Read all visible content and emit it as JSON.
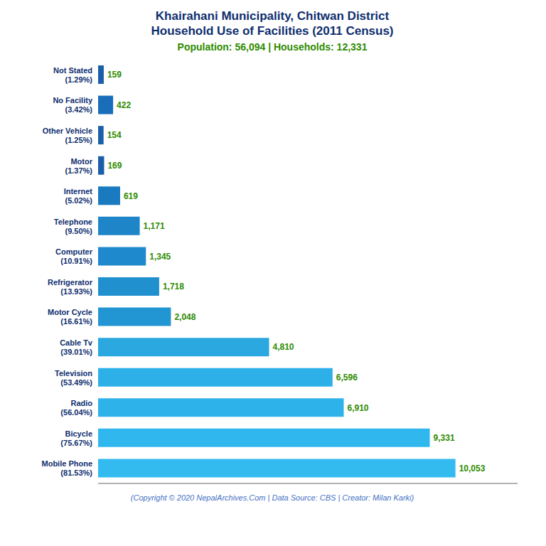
{
  "chart_data": {
    "type": "bar",
    "orientation": "horizontal",
    "title": "Khairahani Municipality, Chitwan District\nHousehold Use of Facilities (2011 Census)",
    "subtitle": "Population: 56,094 | Households: 12,331",
    "annotations": [
      "(Copyright © 2020 NepalArchives.Com | Data Source: CBS | Creator: Milan Karki)"
    ],
    "categories": [
      "Not Stated\n(1.29%)",
      "No Facility\n(3.42%)",
      "Other Vehicle\n(1.25%)",
      "Motor\n(1.37%)",
      "Internet\n(5.02%)",
      "Telephone\n(9.50%)",
      "Computer\n(10.91%)",
      "Refrigerator\n(13.93%)",
      "Motor Cycle\n(16.61%)",
      "Cable Tv\n(39.01%)",
      "Television\n(53.49%)",
      "Radio\n(56.04%)",
      "Bicycle\n(75.67%)",
      "Mobile Phone\n(81.53%)"
    ],
    "values": [
      159,
      422,
      154,
      169,
      619,
      1171,
      1345,
      1718,
      2048,
      4810,
      6596,
      6910,
      9331,
      10053
    ],
    "value_labels": [
      "159",
      "422",
      "154",
      "169",
      "619",
      "1,171",
      "1,345",
      "1,718",
      "2,048",
      "4,810",
      "6,596",
      "6,910",
      "9,331",
      "10,053"
    ],
    "colors": [
      "#1a5fa8",
      "#1a6db8",
      "#1a5fa8",
      "#1a5fa8",
      "#1a7abf",
      "#1e85c8",
      "#1e89cc",
      "#2090cf",
      "#2295d3",
      "#2ba8e0",
      "#2db0e8",
      "#2db3ea",
      "#30b8ee",
      "#33bbf0"
    ],
    "xlim": [
      0,
      11800
    ],
    "data_labels": true,
    "tick_labels": "y",
    "grid": false
  }
}
